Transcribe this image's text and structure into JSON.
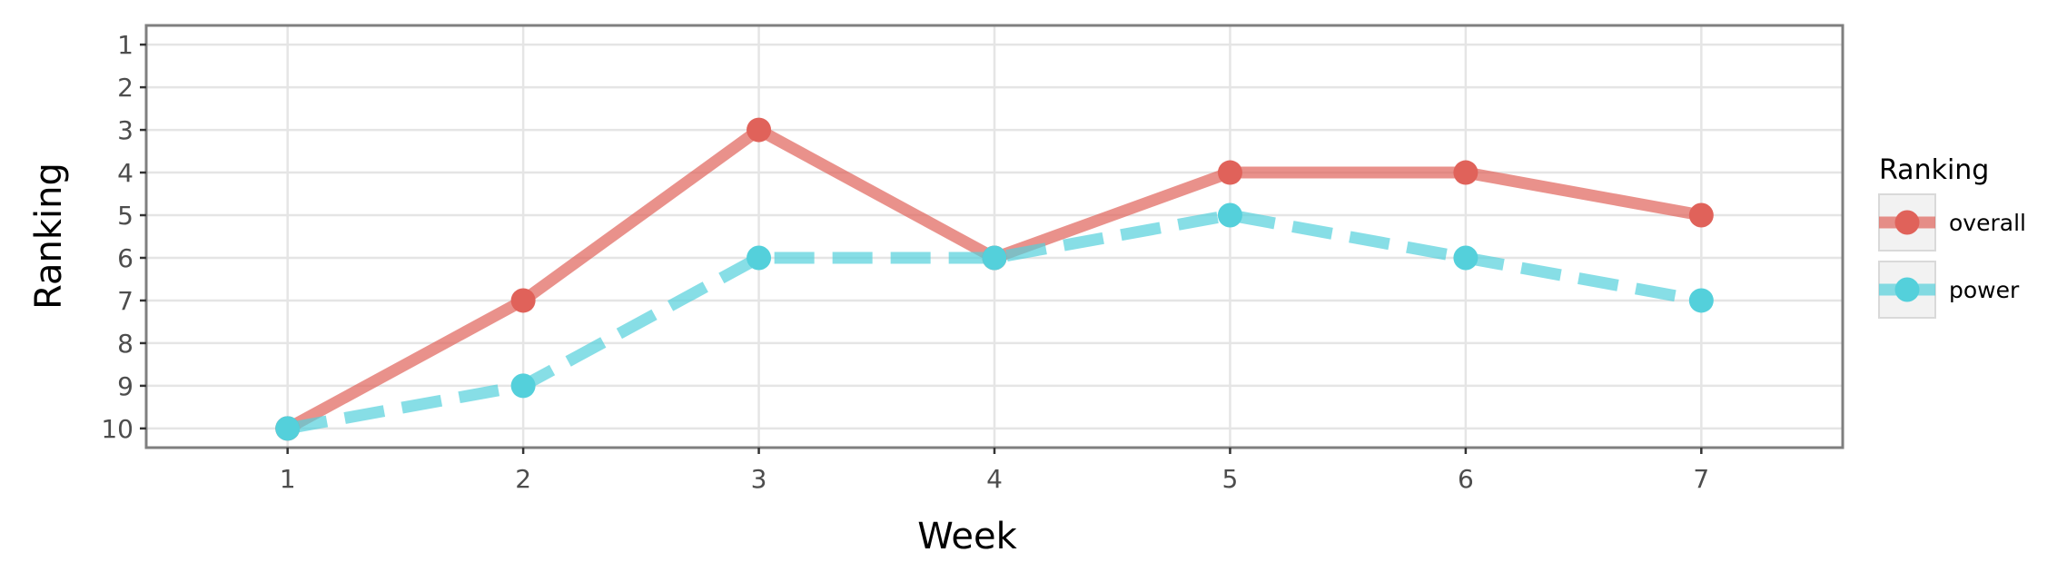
{
  "chart_data": {
    "type": "line",
    "xlabel": "Week",
    "ylabel": "Ranking",
    "x": [
      1,
      2,
      3,
      4,
      5,
      6,
      7
    ],
    "xlim": [
      0.4,
      7.6
    ],
    "ylim": [
      10.45,
      0.55
    ],
    "y_reversed": true,
    "x_ticks": [
      "1",
      "2",
      "3",
      "4",
      "5",
      "6",
      "7"
    ],
    "y_ticks": [
      "1",
      "2",
      "3",
      "4",
      "5",
      "6",
      "7",
      "8",
      "9",
      "10"
    ],
    "grid": true,
    "legend": {
      "title": "Ranking",
      "position": "right"
    },
    "series": [
      {
        "name": "overall",
        "values": [
          10,
          7,
          3,
          6,
          4,
          4,
          5
        ],
        "color": "#e0625a",
        "linestyle": "solid"
      },
      {
        "name": "power",
        "values": [
          10,
          9,
          6,
          6,
          5,
          6,
          7
        ],
        "color": "#54d0db",
        "linestyle": "dashed"
      }
    ]
  }
}
